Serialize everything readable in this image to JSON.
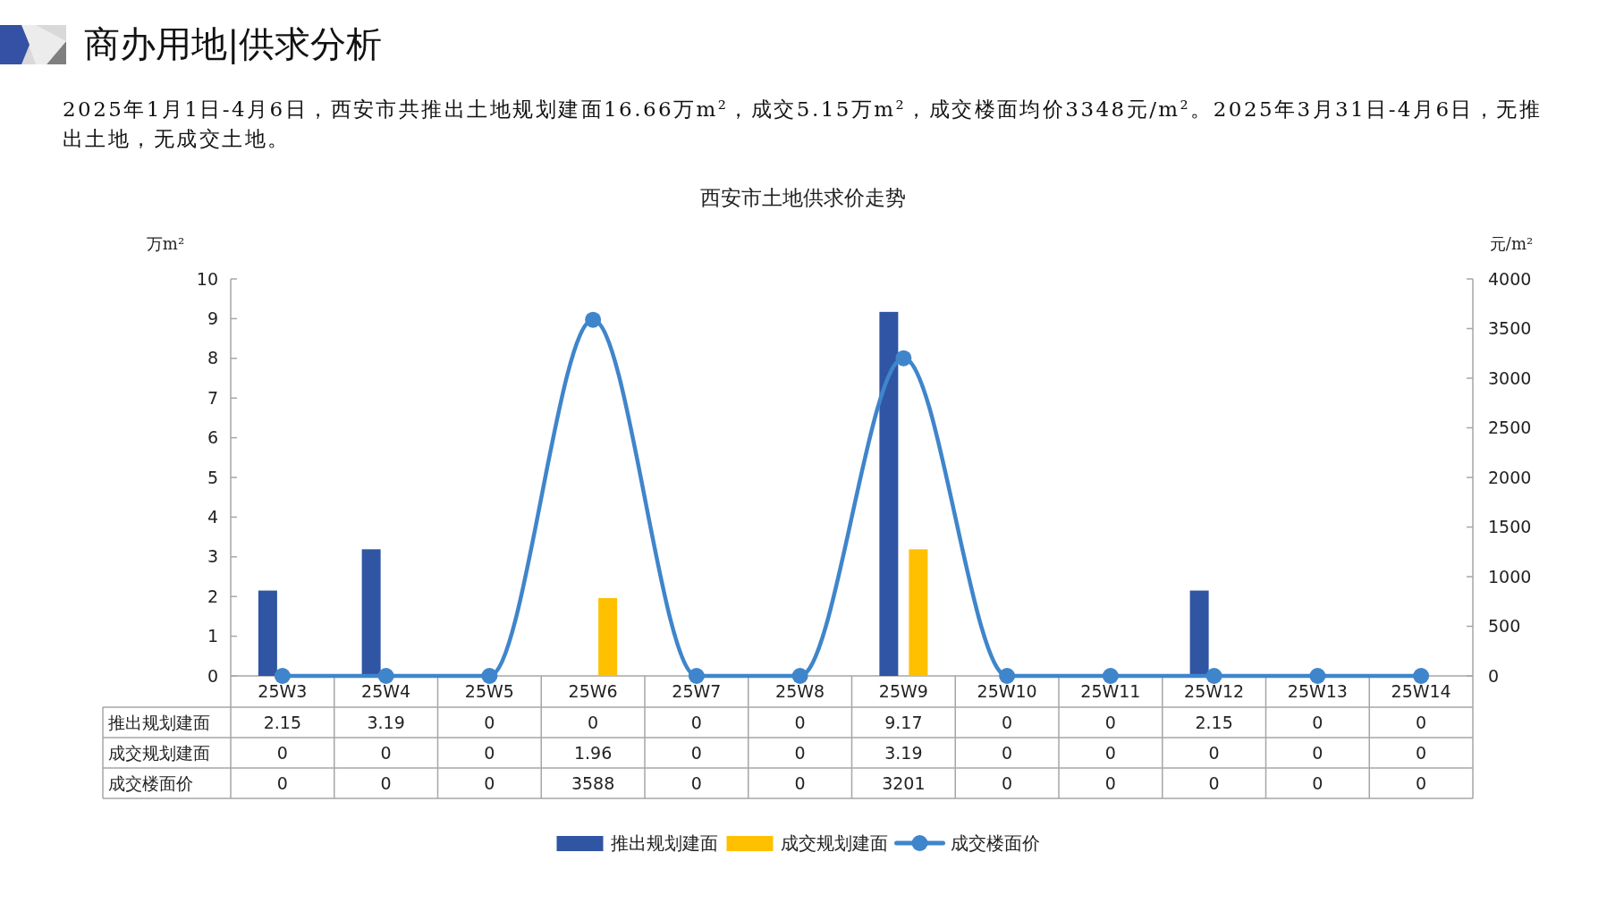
{
  "chart_data": {
    "type": "bar",
    "title": "西安市土地供求价走势",
    "annotations": [
      "商办用地|供求分析",
      "2025年1月1日-4月6日，西安市共推出土地规划建面16.66万m²，成交5.15万m²，成交楼面均价3348元/m²。2025年3月31日-4月6日，无推出土地，无成交土地。"
    ],
    "ylabel": "万m²",
    "y2label": "元/m²",
    "categories": [
      "25W3",
      "25W4",
      "25W5",
      "25W6",
      "25W7",
      "25W8",
      "25W9",
      "25W10",
      "25W11",
      "25W12",
      "25W13",
      "25W14"
    ],
    "series": [
      {
        "name": "推出规划建面",
        "color": "#2f55a3",
        "values": [
          2.15,
          3.19,
          0,
          0,
          0,
          0,
          9.17,
          0,
          0,
          2.15,
          0,
          0
        ]
      },
      {
        "name": "成交规划建面",
        "color": "#ffc000",
        "values": [
          0,
          0,
          0,
          1.96,
          0,
          0,
          3.19,
          0,
          0,
          0,
          0,
          0
        ]
      },
      {
        "name": "成交楼面价",
        "type": "line",
        "axis": "y2",
        "color": "#3f85cb",
        "values": [
          0,
          0,
          0,
          3588,
          0,
          0,
          3201,
          0,
          0,
          0,
          0,
          0
        ]
      }
    ],
    "ylim": [
      0,
      10
    ],
    "yticks": [
      0,
      1,
      2,
      3,
      4,
      5,
      6,
      7,
      8,
      9,
      10
    ],
    "y2lim": [
      0,
      4000
    ],
    "y2ticks": [
      0,
      500,
      1000,
      1500,
      2000,
      2500,
      3000,
      3500,
      4000
    ],
    "legend": "bottom",
    "marker": "circle",
    "data_labels": true
  }
}
